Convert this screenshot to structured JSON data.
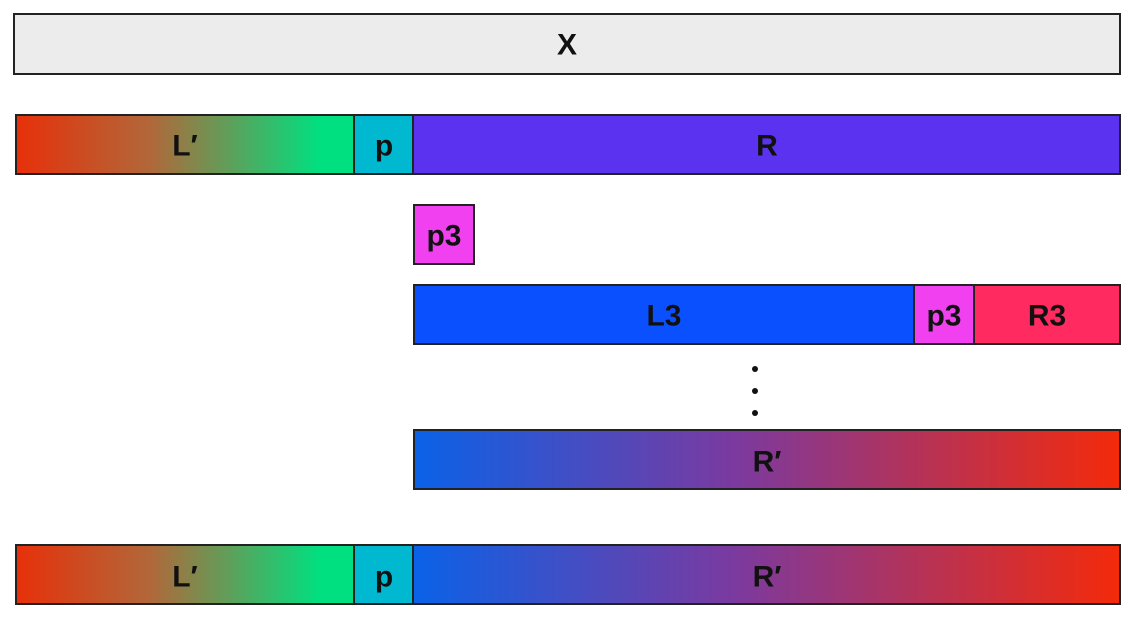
{
  "rows": [
    {
      "cells": [
        "X"
      ]
    },
    {
      "cells": [
        "L′",
        "p",
        "R"
      ]
    },
    {
      "cells": [
        "p3"
      ]
    },
    {
      "cells": [
        "L3",
        "p3",
        "R3"
      ]
    },
    {
      "cells": [
        "R′"
      ]
    },
    {
      "cells": [
        "L′",
        "p",
        "R′"
      ]
    }
  ]
}
